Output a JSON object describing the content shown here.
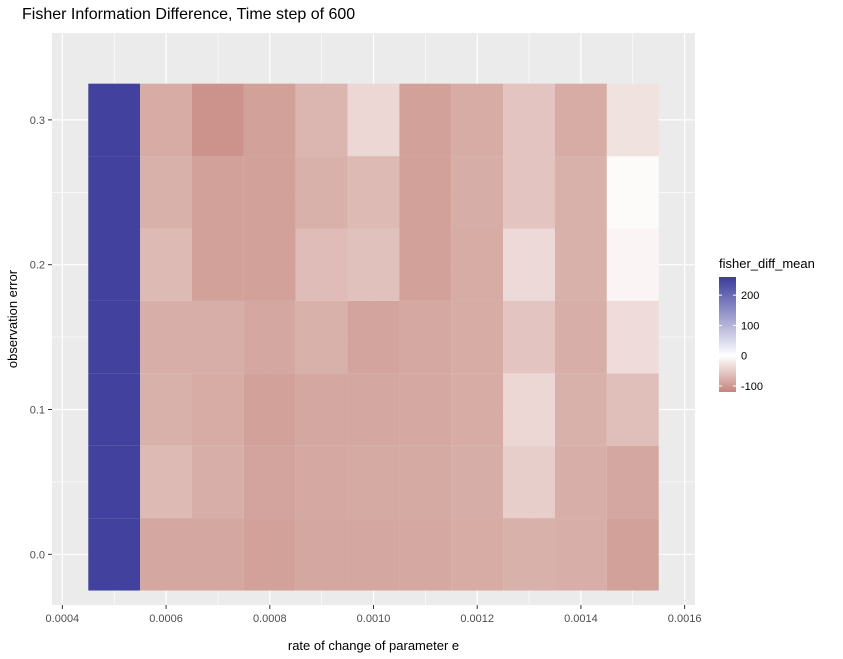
{
  "chart_data": {
    "type": "heatmap",
    "title": "Fisher Information Difference, Time step of 600",
    "xlabel": "rate of change of parameter e",
    "ylabel": "observation error",
    "x": [
      0.0005,
      0.0006,
      0.0007,
      0.0008,
      0.0009,
      0.001,
      0.0011,
      0.0012,
      0.0013,
      0.0014,
      0.0015
    ],
    "y": [
      0.0,
      0.05,
      0.1,
      0.15,
      0.2,
      0.25,
      0.3
    ],
    "x_ticks": [
      "0.0004",
      "0.0006",
      "0.0008",
      "0.0010",
      "0.0012",
      "0.0014",
      "0.0016"
    ],
    "x_tick_values": [
      0.0004,
      0.0006,
      0.0008,
      0.001,
      0.0012,
      0.0014,
      0.0016
    ],
    "y_ticks": [
      "0.0",
      "0.1",
      "0.2",
      "0.3"
    ],
    "y_tick_values": [
      0.0,
      0.1,
      0.2,
      0.3
    ],
    "xlim": [
      0.00038,
      0.00162
    ],
    "ylim": [
      -0.035,
      0.36
    ],
    "z": [
      [
        260,
        -90,
        -90,
        -95,
        -90,
        -90,
        -88,
        -85,
        -80,
        -82,
        -95
      ],
      [
        260,
        -70,
        -82,
        -92,
        -88,
        -87,
        -87,
        -83,
        -50,
        -82,
        -90
      ],
      [
        260,
        -80,
        -85,
        -95,
        -90,
        -90,
        -88,
        -85,
        -40,
        -80,
        -65
      ],
      [
        260,
        -82,
        -82,
        -90,
        -80,
        -92,
        -88,
        -85,
        -60,
        -82,
        -35
      ],
      [
        260,
        -70,
        -95,
        -95,
        -68,
        -63,
        -95,
        -85,
        -38,
        -80,
        -10
      ],
      [
        260,
        -80,
        -95,
        -95,
        -80,
        -70,
        -95,
        -83,
        -60,
        -80,
        -5
      ],
      [
        260,
        -85,
        -110,
        -95,
        -75,
        -40,
        -95,
        -85,
        -60,
        -85,
        -30
      ]
    ],
    "colorbar": {
      "title": "fisher_diff_mean",
      "ticks": [
        "200",
        "100",
        "0",
        "-100"
      ],
      "tick_values": [
        200,
        100,
        0,
        -100
      ],
      "range": [
        -120,
        260
      ],
      "low_color": "#c4857c",
      "mid_color": "#ffffff",
      "high_color": "#3c3c9b"
    },
    "grid": true,
    "legend": "right",
    "panel_background": "#ebebeb",
    "grid_color": "#ffffff"
  }
}
